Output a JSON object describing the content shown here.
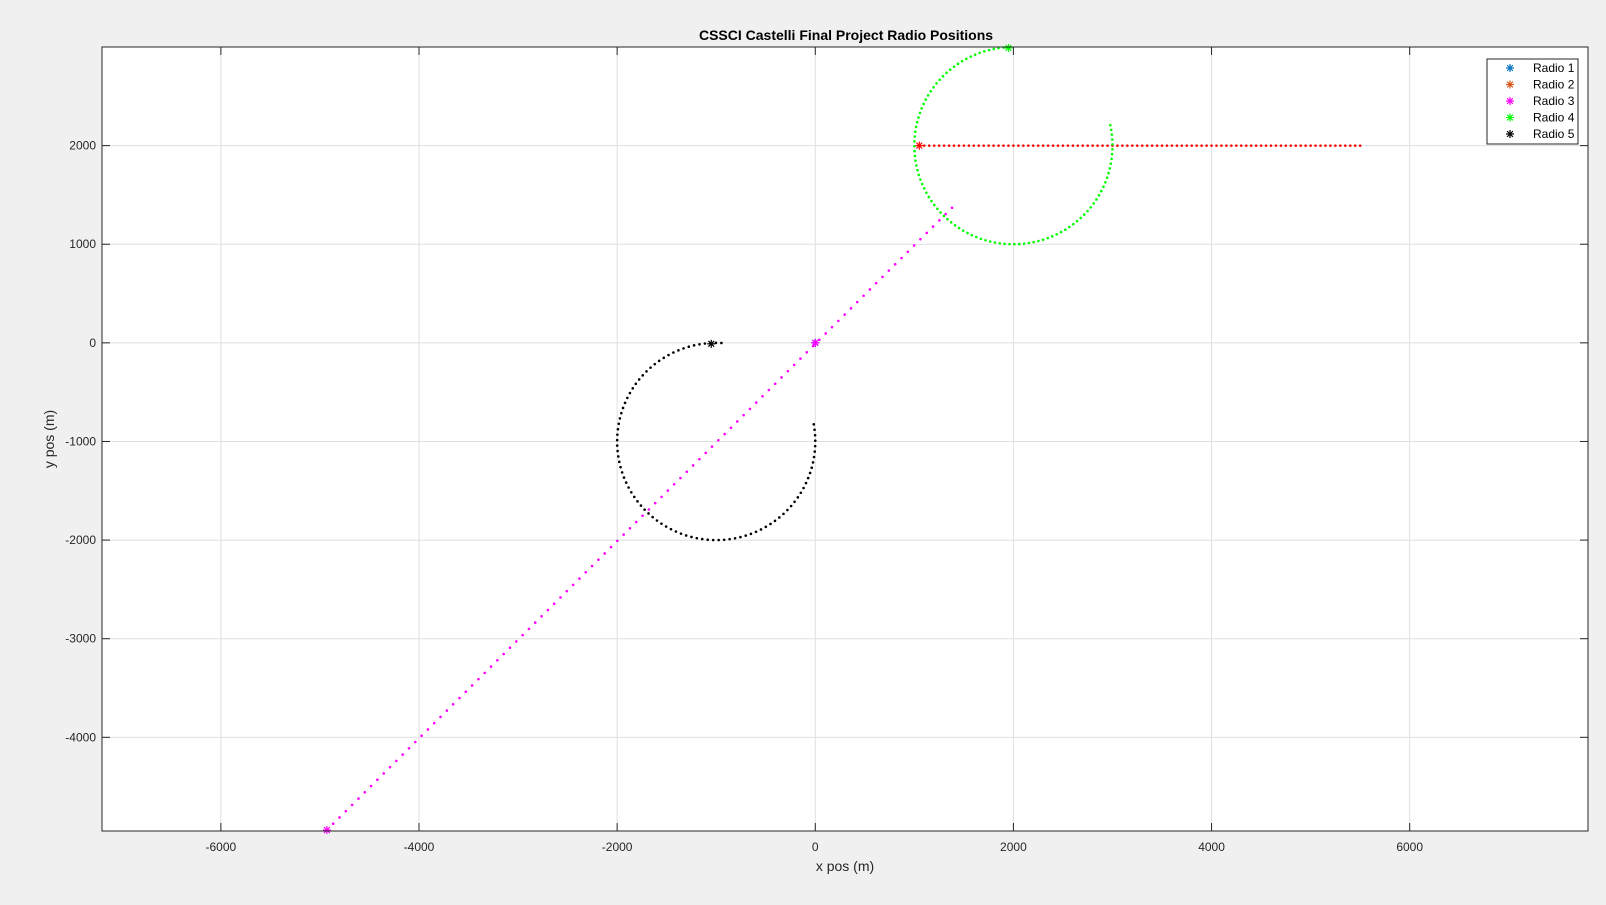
{
  "chart_data": {
    "type": "scatter",
    "title": "CSSCI Castelli Final Project Radio Positions",
    "xlabel": "x pos (m)",
    "ylabel": "y pos (m)",
    "xlim": [
      -7200,
      7800
    ],
    "ylim": [
      -4950,
      3000
    ],
    "xticks": [
      -6000,
      -4000,
      -2000,
      0,
      2000,
      4000,
      6000
    ],
    "yticks": [
      -4000,
      -3000,
      -2000,
      -1000,
      0,
      1000,
      2000
    ],
    "grid": true,
    "legend_position": "top-right",
    "series": [
      {
        "name": "Radio 1",
        "legend_color": "#0072bd",
        "color": "#0000ff",
        "marker": "*",
        "points": [
          [
            0,
            0
          ]
        ],
        "marker_points": [
          [
            0,
            0
          ]
        ]
      },
      {
        "name": "Radio 2",
        "legend_color": "#d95319",
        "color": "#ff0000",
        "marker": "*",
        "path": {
          "kind": "line",
          "from": [
            1050,
            2000
          ],
          "to": [
            5500,
            2000
          ],
          "count": 90
        },
        "marker_points": [
          [
            1050,
            2000
          ]
        ]
      },
      {
        "name": "Radio 3",
        "legend_color": "#ff00ff",
        "color": "#ff00ff",
        "marker": "*",
        "path": {
          "kind": "line",
          "from": [
            -4930,
            -4940
          ],
          "to": [
            1380,
            1370
          ],
          "count": 100
        },
        "marker_points": [
          [
            -4930,
            -4940
          ],
          [
            0,
            0
          ]
        ]
      },
      {
        "name": "Radio 4",
        "legend_color": "#00ff00",
        "color": "#00ff00",
        "marker": "*",
        "path": {
          "kind": "arc",
          "center": [
            2000,
            2000
          ],
          "radius": 1000,
          "start_deg": 93,
          "end_deg": 372,
          "count": 100
        },
        "marker_points": [
          [
            1950,
            2990
          ]
        ]
      },
      {
        "name": "Radio 5",
        "legend_color": "#000000",
        "color": "#000000",
        "marker": "*",
        "path": {
          "kind": "arc",
          "center": [
            -1000,
            -1000
          ],
          "radius": 1000,
          "start_deg": 87,
          "end_deg": 370,
          "count": 90
        },
        "marker_points": [
          [
            -1050,
            -10
          ]
        ]
      }
    ]
  }
}
